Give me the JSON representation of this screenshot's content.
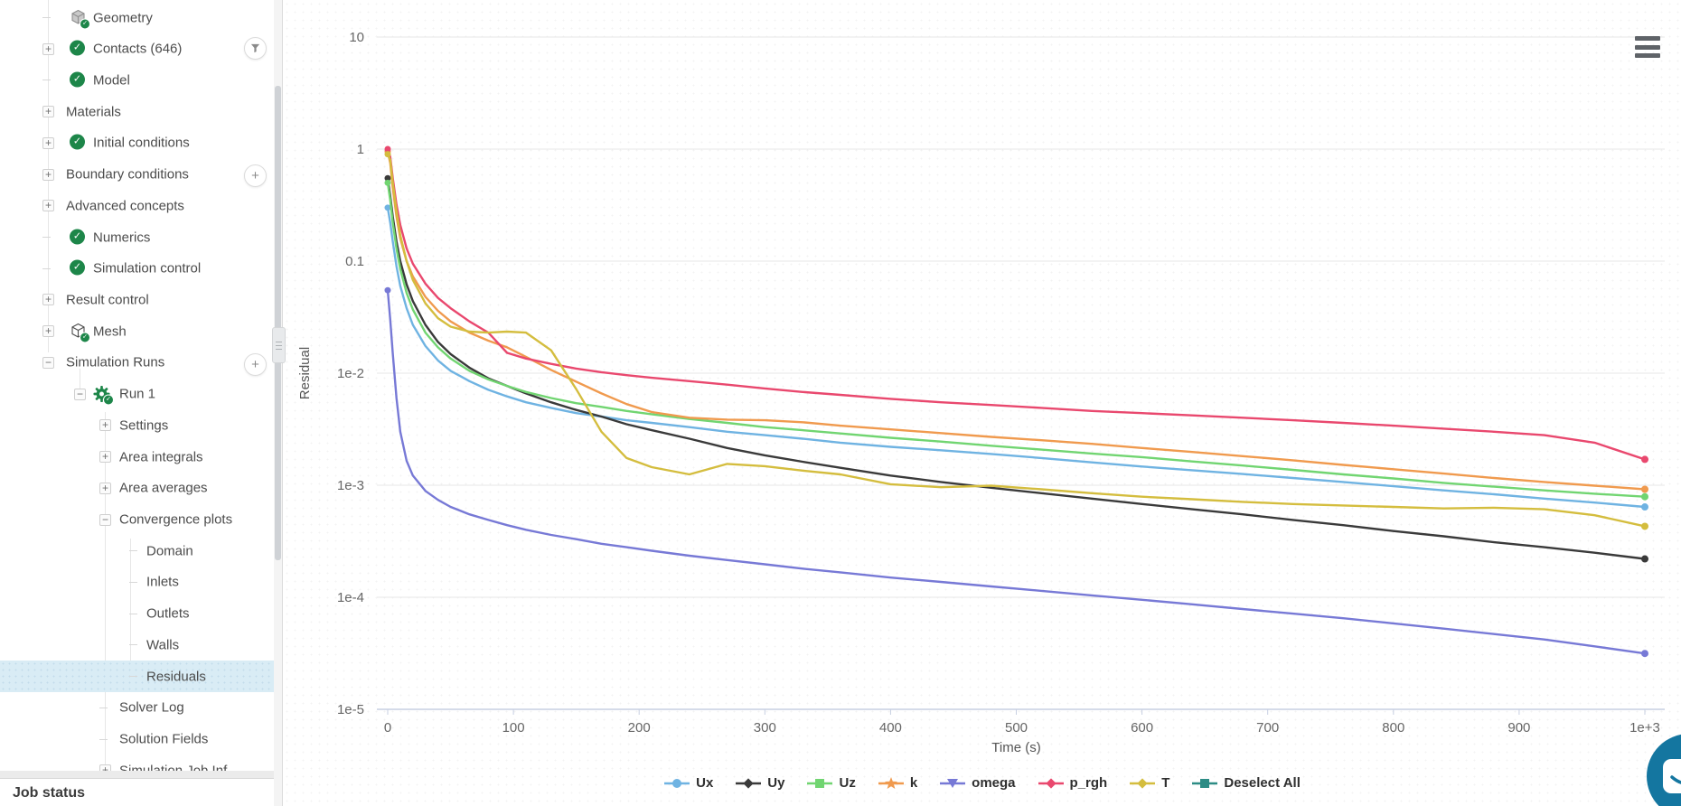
{
  "sidebar": {
    "job_status_label": "Job status",
    "selected_bg": "#d9ecf5",
    "check_color": "#1d8649",
    "items": [
      {
        "label": "Geometry",
        "level": 2,
        "icon": "geometry-cube",
        "expander": "dash"
      },
      {
        "label": "Contacts (646)",
        "level": 2,
        "icon": "check",
        "expander": "plus"
      },
      {
        "label": "Model",
        "level": 2,
        "icon": "check",
        "expander": "dash"
      },
      {
        "label": "Materials",
        "level": 1,
        "icon": "",
        "expander": "plus"
      },
      {
        "label": "Initial conditions",
        "level": 2,
        "icon": "check",
        "expander": "plus"
      },
      {
        "label": "Boundary conditions",
        "level": 1,
        "icon": "",
        "expander": "plus"
      },
      {
        "label": "Advanced concepts",
        "level": 1,
        "icon": "",
        "expander": "plus"
      },
      {
        "label": "Numerics",
        "level": 2,
        "icon": "check",
        "expander": "dash"
      },
      {
        "label": "Simulation control",
        "level": 2,
        "icon": "check",
        "expander": "dash"
      },
      {
        "label": "Result control",
        "level": 1,
        "icon": "",
        "expander": "plus"
      },
      {
        "label": "Mesh",
        "level": 2,
        "icon": "mesh-cube",
        "expander": "plus"
      },
      {
        "label": "Simulation Runs",
        "level": 1,
        "icon": "",
        "expander": "minus"
      },
      {
        "label": "Run 1",
        "level": 3,
        "icon": "gear",
        "expander": "minus"
      },
      {
        "label": "Settings",
        "level": 4,
        "icon": "",
        "expander": "plus"
      },
      {
        "label": "Area integrals",
        "level": 4,
        "icon": "",
        "expander": "plus"
      },
      {
        "label": "Area averages",
        "level": 4,
        "icon": "",
        "expander": "plus"
      },
      {
        "label": "Convergence plots",
        "level": 4,
        "icon": "",
        "expander": "minus"
      },
      {
        "label": "Domain",
        "level": 5,
        "icon": "",
        "expander": "dash"
      },
      {
        "label": "Inlets",
        "level": 5,
        "icon": "",
        "expander": "dash"
      },
      {
        "label": "Outlets",
        "level": 5,
        "icon": "",
        "expander": "dash"
      },
      {
        "label": "Walls",
        "level": 5,
        "icon": "",
        "expander": "dash"
      },
      {
        "label": "Residuals",
        "level": 5,
        "icon": "",
        "expander": "dash",
        "selected": true
      },
      {
        "label": "Solver Log",
        "level": 4,
        "icon": "",
        "expander": "dash"
      },
      {
        "label": "Solution Fields",
        "level": 4,
        "icon": "",
        "expander": "dash"
      },
      {
        "label": "Simulation Job Inf",
        "level": 4,
        "icon": "",
        "expander": "plus",
        "clipped": true
      }
    ],
    "float_buttons": [
      {
        "type": "filter",
        "row_label": "Contacts (646)"
      },
      {
        "type": "plus",
        "row_label": "Boundary conditions"
      },
      {
        "type": "plus",
        "row_label": "Simulation Runs"
      }
    ]
  },
  "chart_data": {
    "type": "line",
    "xlabel": "Time (s)",
    "ylabel": "Residual",
    "y_scale": "log",
    "xlim": [
      0,
      1000
    ],
    "ylim": [
      1e-05,
      10
    ],
    "grid": "horizontal",
    "legend_position": "bottom-center",
    "x_ticks": [
      "0",
      "100",
      "200",
      "300",
      "400",
      "500",
      "600",
      "700",
      "800",
      "900",
      "1e+3"
    ],
    "x_tick_values": [
      0,
      100,
      200,
      300,
      400,
      500,
      600,
      700,
      800,
      900,
      1000
    ],
    "y_ticks": [
      "10",
      "1",
      "0.1",
      "1e-2",
      "1e-3",
      "1e-4",
      "1e-5"
    ],
    "y_tick_values": [
      10,
      1,
      0.1,
      0.01,
      0.001,
      0.0001,
      1e-05
    ],
    "x": [
      0,
      2,
      4,
      7,
      10,
      15,
      20,
      30,
      40,
      50,
      65,
      80,
      95,
      110,
      130,
      150,
      170,
      190,
      210,
      240,
      270,
      300,
      330,
      360,
      400,
      440,
      480,
      520,
      560,
      600,
      640,
      680,
      720,
      760,
      800,
      840,
      880,
      920,
      960,
      1000
    ],
    "series": [
      {
        "name": "Ux",
        "color": "#6fb3e2",
        "marker": "circle",
        "values": [
          0.3,
          0.22,
          0.15,
          0.09,
          0.06,
          0.038,
          0.027,
          0.0175,
          0.013,
          0.0105,
          0.0085,
          0.0071,
          0.0062,
          0.0055,
          0.0049,
          0.0044,
          0.0041,
          0.0038,
          0.0036,
          0.0033,
          0.003,
          0.0028,
          0.0026,
          0.0024,
          0.0022,
          0.00205,
          0.0019,
          0.00175,
          0.0016,
          0.00147,
          0.00136,
          0.00126,
          0.00116,
          0.00107,
          0.00098,
          0.0009,
          0.00083,
          0.00076,
          0.0007,
          0.00064
        ]
      },
      {
        "name": "Uy",
        "color": "#3a3a3a",
        "marker": "diamond",
        "values": [
          0.55,
          0.38,
          0.25,
          0.15,
          0.1,
          0.062,
          0.044,
          0.027,
          0.019,
          0.0148,
          0.0112,
          0.009,
          0.0077,
          0.0066,
          0.0055,
          0.0047,
          0.0041,
          0.0035,
          0.0031,
          0.0026,
          0.00215,
          0.00185,
          0.00162,
          0.00143,
          0.00122,
          0.00107,
          0.00095,
          0.00085,
          0.00076,
          0.00068,
          0.00061,
          0.00055,
          0.00049,
          0.00044,
          0.00039,
          0.00035,
          0.00031,
          0.00028,
          0.00025,
          0.00022
        ]
      },
      {
        "name": "Uz",
        "color": "#71d571",
        "marker": "square",
        "values": [
          0.5,
          0.35,
          0.22,
          0.13,
          0.085,
          0.052,
          0.037,
          0.023,
          0.017,
          0.0135,
          0.0105,
          0.0088,
          0.0077,
          0.0068,
          0.006,
          0.0054,
          0.005,
          0.0046,
          0.0043,
          0.0039,
          0.0036,
          0.0033,
          0.0031,
          0.0029,
          0.00265,
          0.00245,
          0.00225,
          0.00208,
          0.00192,
          0.00178,
          0.00163,
          0.0015,
          0.00137,
          0.00125,
          0.00115,
          0.00105,
          0.00097,
          0.0009,
          0.00084,
          0.00079
        ]
      },
      {
        "name": "k",
        "color": "#f09a4e",
        "marker": "star",
        "values": [
          0.95,
          0.75,
          0.45,
          0.25,
          0.16,
          0.1,
          0.073,
          0.048,
          0.036,
          0.029,
          0.023,
          0.0195,
          0.017,
          0.014,
          0.0107,
          0.0084,
          0.0066,
          0.0053,
          0.0045,
          0.004,
          0.00385,
          0.0038,
          0.00365,
          0.0034,
          0.00315,
          0.00292,
          0.0027,
          0.00252,
          0.00234,
          0.00215,
          0.00198,
          0.00182,
          0.00167,
          0.00152,
          0.00139,
          0.00127,
          0.00116,
          0.00107,
          0.00099,
          0.00092
        ]
      },
      {
        "name": "omega",
        "color": "#7779d6",
        "marker": "triangle-down",
        "values": [
          0.055,
          0.03,
          0.015,
          0.006,
          0.003,
          0.00165,
          0.00122,
          0.00089,
          0.00074,
          0.00064,
          0.00055,
          0.00049,
          0.00044,
          0.0004,
          0.00036,
          0.00033,
          0.0003,
          0.00028,
          0.00026,
          0.000235,
          0.000215,
          0.000197,
          0.00018,
          0.000167,
          0.00015,
          0.000137,
          0.000125,
          0.000114,
          0.000104,
          9.5e-05,
          8.65e-05,
          7.85e-05,
          7.15e-05,
          6.5e-05,
          5.85e-05,
          5.25e-05,
          4.7e-05,
          4.2e-05,
          3.65e-05,
          3.15e-05
        ]
      },
      {
        "name": "p_rgh",
        "color": "#e9486e",
        "marker": "diamond",
        "values": [
          1.0,
          0.85,
          0.55,
          0.32,
          0.21,
          0.13,
          0.095,
          0.063,
          0.047,
          0.038,
          0.029,
          0.023,
          0.0152,
          0.0135,
          0.0121,
          0.011,
          0.0102,
          0.0096,
          0.0091,
          0.0085,
          0.0079,
          0.0073,
          0.0068,
          0.0064,
          0.0059,
          0.0055,
          0.0052,
          0.0049,
          0.0046,
          0.0044,
          0.0042,
          0.004,
          0.0038,
          0.0036,
          0.0034,
          0.0032,
          0.003,
          0.0028,
          0.0024,
          0.0017
        ]
      },
      {
        "name": "T",
        "color": "#d4bd3e",
        "marker": "diamond",
        "values": [
          0.9,
          0.8,
          0.5,
          0.28,
          0.17,
          0.1,
          0.068,
          0.042,
          0.031,
          0.026,
          0.0235,
          0.023,
          0.0235,
          0.023,
          0.016,
          0.0072,
          0.003,
          0.00175,
          0.00145,
          0.00125,
          0.00155,
          0.00148,
          0.00135,
          0.00125,
          0.00102,
          0.00096,
          0.00099,
          0.00092,
          0.00085,
          0.00079,
          0.00075,
          0.00071,
          0.00068,
          0.00066,
          0.00064,
          0.00062,
          0.00063,
          0.00061,
          0.00054,
          0.00043
        ]
      }
    ],
    "legend_extra": {
      "label": "Deselect All",
      "color": "#2d8c85",
      "marker": "square"
    }
  },
  "controls": {
    "chart_menu": "chart-menu",
    "chat": "chat"
  }
}
